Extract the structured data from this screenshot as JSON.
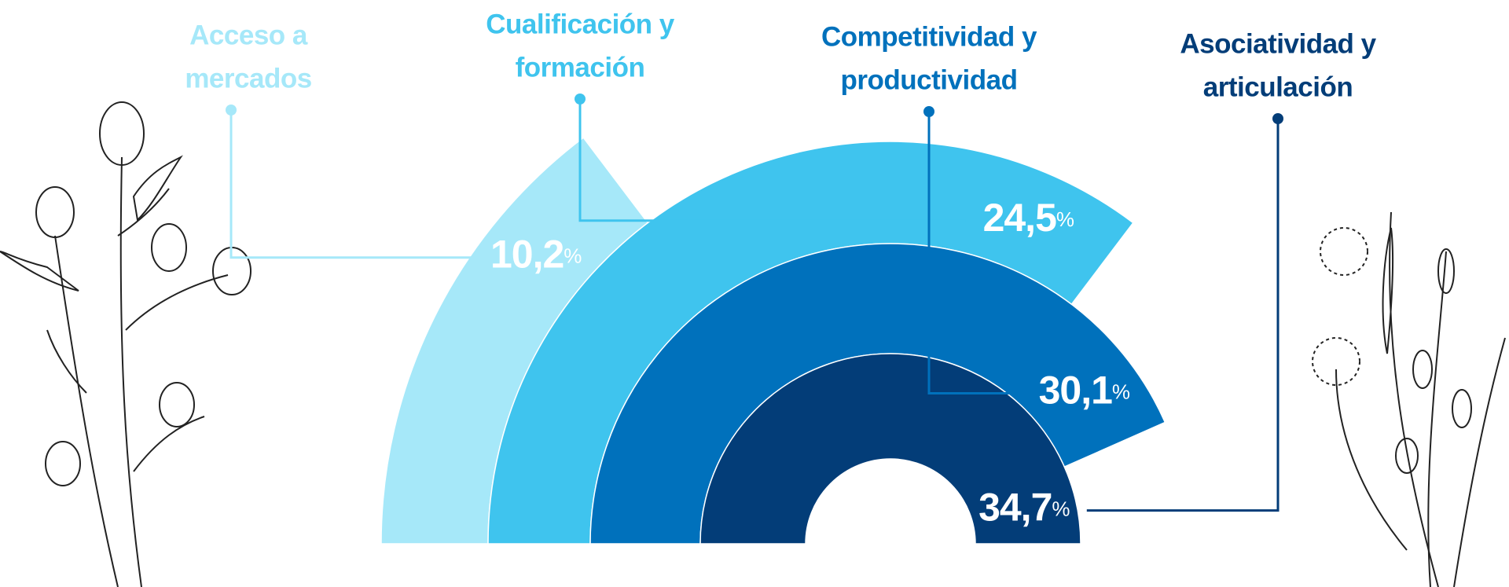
{
  "chart_data": {
    "type": "radial-bar",
    "categories": [
      [
        "Acceso a",
        "mercados"
      ],
      [
        "Cualificación y",
        "formación"
      ],
      [
        "Competitividad y",
        "productividad"
      ],
      [
        "Asociatividad y",
        "articulación"
      ]
    ],
    "values": [
      10.2,
      24.5,
      30.1,
      34.7
    ],
    "value_labels": [
      "10,2",
      "24,5",
      "30,1",
      "34,7"
    ],
    "unit": "%",
    "colors": [
      "#a6e8f9",
      "#3fc4ee",
      "#0071bc",
      "#033d78"
    ]
  }
}
